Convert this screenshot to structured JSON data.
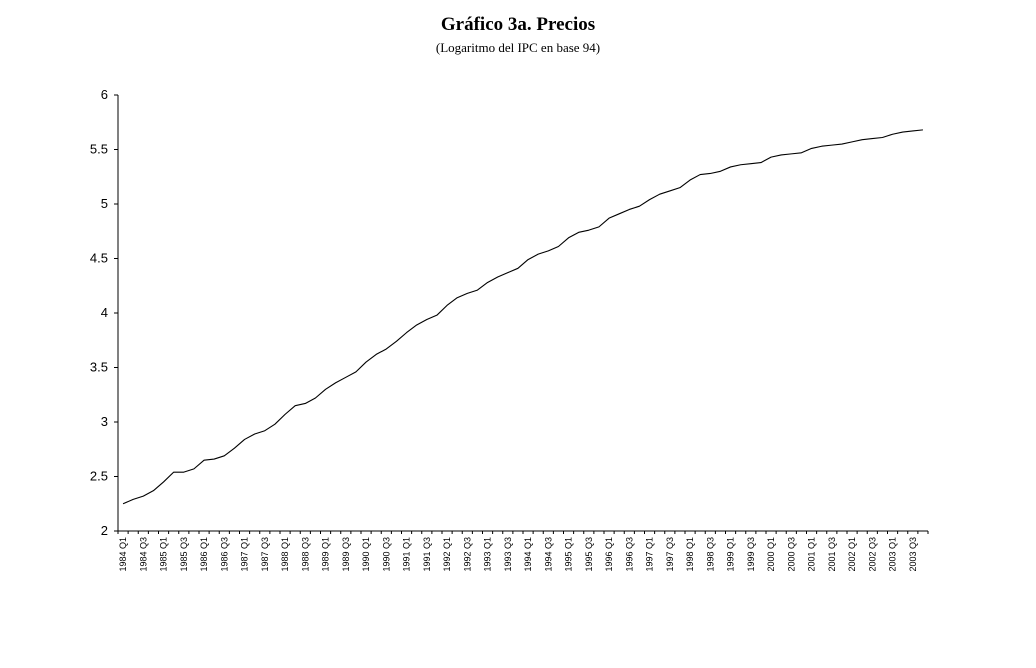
{
  "chart_data": {
    "type": "line",
    "title": "Gráfico 3a. Precios",
    "subtitle": "(Logaritmo del IPC en base 94)",
    "xlabel": "",
    "ylabel": "",
    "ylim": [
      2,
      6
    ],
    "yticks": [
      "2",
      "2.5",
      "3",
      "3.5",
      "4",
      "4.5",
      "5",
      "5.5",
      "6"
    ],
    "grid": false,
    "legend": "none",
    "line_color": "#000000",
    "x_tick_labels": [
      "1984 Q1",
      "1984 Q3",
      "1985 Q1",
      "1985 Q3",
      "1986 Q1",
      "1986 Q3",
      "1987 Q1",
      "1987 Q3",
      "1988 Q1",
      "1988 Q3",
      "1989 Q1",
      "1989 Q3",
      "1990 Q1",
      "1990 Q3",
      "1991 Q1",
      "1991 Q3",
      "1992 Q1",
      "1992 Q3",
      "1993 Q1",
      "1993 Q3",
      "1994 Q1",
      "1994 Q3",
      "1995 Q1",
      "1995 Q3",
      "1996 Q1",
      "1996 Q3",
      "1997 Q1",
      "1997 Q3",
      "1998 Q1",
      "1998 Q3",
      "1999 Q1",
      "1999 Q3",
      "2000 Q1",
      "2000 Q3",
      "2001 Q1",
      "2001 Q3",
      "2002 Q1",
      "2002 Q3",
      "2003 Q1",
      "2003 Q3"
    ],
    "x": [
      "1984 Q1",
      "1984 Q2",
      "1984 Q3",
      "1984 Q4",
      "1985 Q1",
      "1985 Q2",
      "1985 Q3",
      "1985 Q4",
      "1986 Q1",
      "1986 Q2",
      "1986 Q3",
      "1986 Q4",
      "1987 Q1",
      "1987 Q2",
      "1987 Q3",
      "1987 Q4",
      "1988 Q1",
      "1988 Q2",
      "1988 Q3",
      "1988 Q4",
      "1989 Q1",
      "1989 Q2",
      "1989 Q3",
      "1989 Q4",
      "1990 Q1",
      "1990 Q2",
      "1990 Q3",
      "1990 Q4",
      "1991 Q1",
      "1991 Q2",
      "1991 Q3",
      "1991 Q4",
      "1992 Q1",
      "1992 Q2",
      "1992 Q3",
      "1992 Q4",
      "1993 Q1",
      "1993 Q2",
      "1993 Q3",
      "1993 Q4",
      "1994 Q1",
      "1994 Q2",
      "1994 Q3",
      "1994 Q4",
      "1995 Q1",
      "1995 Q2",
      "1995 Q3",
      "1995 Q4",
      "1996 Q1",
      "1996 Q2",
      "1996 Q3",
      "1996 Q4",
      "1997 Q1",
      "1997 Q2",
      "1997 Q3",
      "1997 Q4",
      "1998 Q1",
      "1998 Q2",
      "1998 Q3",
      "1998 Q4",
      "1999 Q1",
      "1999 Q2",
      "1999 Q3",
      "1999 Q4",
      "2000 Q1",
      "2000 Q2",
      "2000 Q3",
      "2000 Q4",
      "2001 Q1",
      "2001 Q2",
      "2001 Q3",
      "2001 Q4",
      "2002 Q1",
      "2002 Q2",
      "2002 Q3",
      "2002 Q4",
      "2003 Q1",
      "2003 Q2",
      "2003 Q3",
      "2003 Q4"
    ],
    "series": [
      {
        "values": [
          2.25,
          2.29,
          2.32,
          2.37,
          2.45,
          2.54,
          2.54,
          2.57,
          2.65,
          2.66,
          2.69,
          2.76,
          2.84,
          2.89,
          2.92,
          2.98,
          3.07,
          3.15,
          3.17,
          3.22,
          3.3,
          3.36,
          3.41,
          3.46,
          3.55,
          3.62,
          3.67,
          3.74,
          3.82,
          3.89,
          3.94,
          3.98,
          4.07,
          4.14,
          4.18,
          4.21,
          4.28,
          4.33,
          4.37,
          4.41,
          4.49,
          4.54,
          4.57,
          4.61,
          4.69,
          4.74,
          4.76,
          4.79,
          4.87,
          4.91,
          4.95,
          4.98,
          5.04,
          5.09,
          5.12,
          5.15,
          5.22,
          5.27,
          5.28,
          5.3,
          5.34,
          5.36,
          5.37,
          5.38,
          5.43,
          5.45,
          5.46,
          5.47,
          5.51,
          5.53,
          5.54,
          5.55,
          5.57,
          5.59,
          5.6,
          5.61,
          5.64,
          5.66,
          5.67,
          5.68
        ]
      }
    ]
  }
}
